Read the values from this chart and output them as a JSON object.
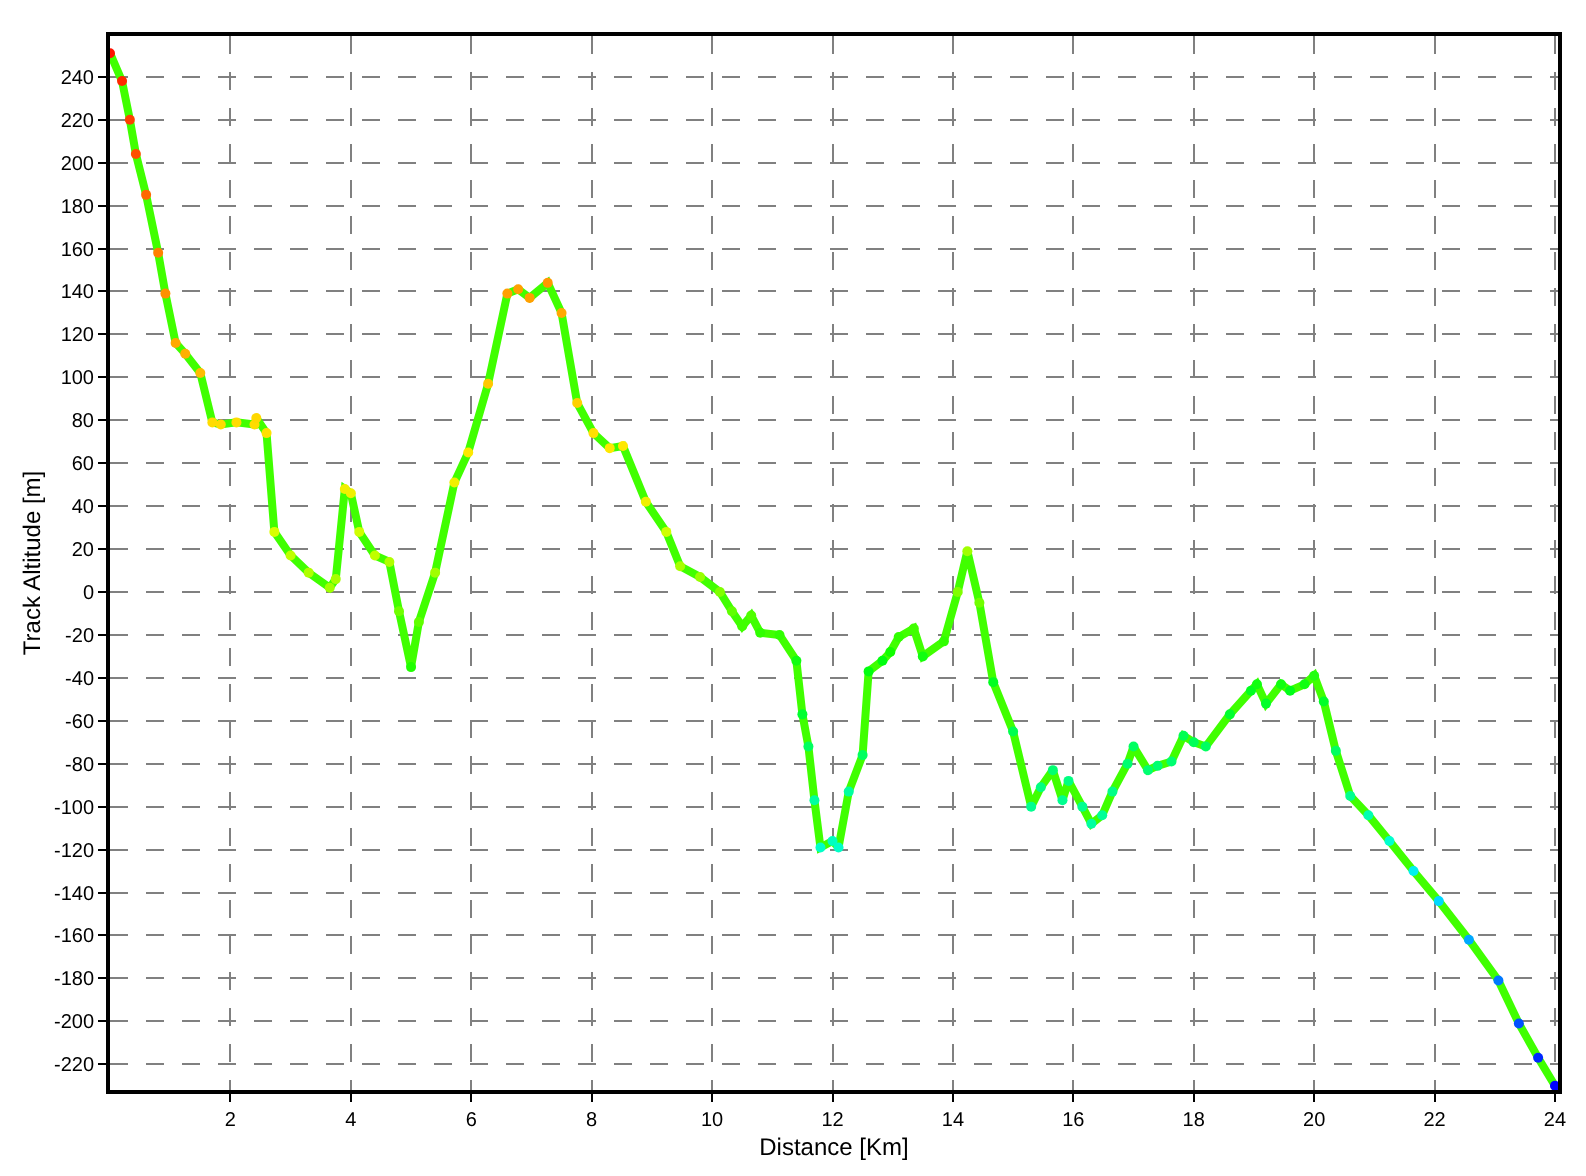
{
  "chart_data": {
    "type": "line",
    "xlabel": "Distance [Km]",
    "ylabel": "Track Altitude [m]",
    "xlim": [
      0,
      24.05
    ],
    "ylim": [
      -232,
      259
    ],
    "xticks": [
      2,
      4,
      6,
      8,
      10,
      12,
      14,
      16,
      18,
      20,
      22,
      24
    ],
    "yticks": [
      -220,
      -200,
      -180,
      -160,
      -140,
      -120,
      -100,
      -80,
      -60,
      -40,
      -20,
      0,
      20,
      40,
      60,
      80,
      100,
      120,
      140,
      160,
      180,
      200,
      220,
      240
    ],
    "grid": true,
    "marker": "circle",
    "series": [
      {
        "color": "#40ff00",
        "x": [
          0,
          0.2,
          0.33,
          0.43,
          0.6,
          0.8,
          0.92,
          1.09,
          1.25,
          1.5,
          1.7,
          1.84,
          2.1,
          2.4,
          2.43,
          2.6,
          2.73,
          3.0,
          3.3,
          3.65,
          3.75,
          3.9,
          4.0,
          4.14,
          4.4,
          4.64,
          4.8,
          5.0,
          5.13,
          5.4,
          5.72,
          5.95,
          6.28,
          6.6,
          6.78,
          6.97,
          7.27,
          7.5,
          7.76,
          8.03,
          8.3,
          8.52,
          8.9,
          9.24,
          9.47,
          9.8,
          10.13,
          10.33,
          10.5,
          10.65,
          10.8,
          11.12,
          11.4,
          11.5,
          11.6,
          11.7,
          11.8,
          12.0,
          12.1,
          12.27,
          12.5,
          12.6,
          12.83,
          12.96,
          13.1,
          13.35,
          13.5,
          13.85,
          14.08,
          14.24,
          14.44,
          14.67,
          15.0,
          15.3,
          15.46,
          15.66,
          15.82,
          15.92,
          16.15,
          16.3,
          16.48,
          16.65,
          16.9,
          17.0,
          17.24,
          17.4,
          17.63,
          17.83,
          18.0,
          18.2,
          18.6,
          18.95,
          19.05,
          19.2,
          19.45,
          19.6,
          19.84,
          20.0,
          20.16,
          20.36,
          20.6,
          20.9,
          21.25,
          21.65,
          22.07,
          22.57,
          23.06,
          23.4,
          23.72,
          24.0
        ],
        "values": [
          251,
          238,
          220,
          204,
          185,
          158,
          139,
          116,
          111,
          102,
          79,
          78,
          79,
          78,
          81,
          74,
          28,
          17,
          9,
          2,
          6,
          48,
          46,
          28,
          17,
          14,
          -9,
          -35,
          -14,
          9,
          51,
          65,
          97,
          139,
          141,
          137,
          144,
          130,
          88,
          74,
          67,
          68,
          42,
          28,
          12,
          7,
          0,
          -9,
          -16,
          -11,
          -19,
          -20,
          -32,
          -57,
          -72,
          -97,
          -119,
          -116,
          -119,
          -93,
          -76,
          -37,
          -32,
          -28,
          -21,
          -17,
          -30,
          -23,
          0,
          19,
          -5,
          -42,
          -65,
          -100,
          -91,
          -83,
          -97,
          -88,
          -100,
          -108,
          -104,
          -93,
          -80,
          -72,
          -83,
          -81,
          -79,
          -67,
          -70,
          -72,
          -57,
          -46,
          -43,
          -52,
          -43,
          -46,
          -43,
          -39,
          -51,
          -74,
          -95,
          -104,
          -116,
          -130,
          -144,
          -162,
          -181,
          -201,
          -217,
          -230
        ],
        "colors": [
          "#ff1000",
          "#ff2800",
          "#ff4000",
          "#ff5000",
          "#ff6800",
          "#ff8000",
          "#ff9000",
          "#ffa800",
          "#ffb000",
          "#ffbc00",
          "#ffdc00",
          "#ffdc00",
          "#ffdc00",
          "#ffdc00",
          "#ffd800",
          "#ffe000",
          "#d8ff00",
          "#c0ff00",
          "#b0ff00",
          "#a0ff00",
          "#a8ff00",
          "#f0f000",
          "#f0f000",
          "#d0ff00",
          "#c0ff00",
          "#b0ff00",
          "#70ff00",
          "#20ff00",
          "#60ff00",
          "#a0ff00",
          "#f0f000",
          "#ffe800",
          "#ffc800",
          "#ffa000",
          "#ffa000",
          "#ffa000",
          "#ff9800",
          "#ffa800",
          "#ffd000",
          "#ffe000",
          "#ffe800",
          "#ffe800",
          "#f0f000",
          "#d0ff00",
          "#a8ff00",
          "#98ff00",
          "#80ff00",
          "#60ff00",
          "#40ff00",
          "#50ff00",
          "#30ff00",
          "#30ff00",
          "#10ff10",
          "#00ff30",
          "#00ff60",
          "#00ffa0",
          "#00ffc8",
          "#00ffc0",
          "#00ffc8",
          "#00ffa0",
          "#00ff60",
          "#00ff10",
          "#00ff10",
          "#10ff00",
          "#30ff00",
          "#40ff00",
          "#10ff10",
          "#30ff00",
          "#80ff00",
          "#a0ff00",
          "#70ff00",
          "#00ff20",
          "#00ff50",
          "#00ff90",
          "#00ff80",
          "#00ff70",
          "#00ff90",
          "#00ff80",
          "#00ff90",
          "#00ffa0",
          "#00ff98",
          "#00ff88",
          "#00ff70",
          "#00ff60",
          "#00ff70",
          "#00ff70",
          "#00ff70",
          "#00ff50",
          "#00ff58",
          "#00ff60",
          "#00ff30",
          "#00ff20",
          "#10ff10",
          "#00ff28",
          "#10ff10",
          "#00ff18",
          "#10ff10",
          "#20ff10",
          "#00ff28",
          "#00ff60",
          "#00ff90",
          "#00ffb0",
          "#00ffd0",
          "#00f0f0",
          "#00d8ff",
          "#00a8ff",
          "#0078ff",
          "#0050ff",
          "#0028ff",
          "#0000ff"
        ]
      }
    ]
  }
}
